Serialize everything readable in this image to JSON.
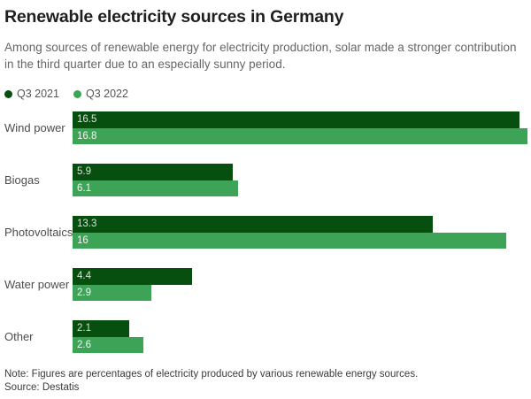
{
  "header": {
    "title": "Renewable electricity sources in Germany",
    "subtitle": "Among sources of renewable energy for electricity production, solar made a stronger contribution in the third quarter due to an especially sunny period."
  },
  "chart_data": {
    "type": "bar",
    "orientation": "horizontal",
    "title": "Renewable electricity sources in Germany",
    "categories": [
      "Wind power",
      "Biogas",
      "Photovoltaics",
      "Water power",
      "Other"
    ],
    "series": [
      {
        "name": "Q3 2021",
        "color": "#064f0e",
        "values": [
          16.5,
          5.9,
          13.3,
          4.4,
          2.1
        ],
        "labels": [
          "16.5",
          "5.9",
          "13.3",
          "4.4",
          "2.1"
        ]
      },
      {
        "name": "Q3 2022",
        "color": "#3ca357",
        "values": [
          16.8,
          6.1,
          16,
          2.9,
          2.6
        ],
        "labels": [
          "16.8",
          "6.1",
          "16",
          "2.9",
          "2.6"
        ]
      }
    ],
    "xlim": [
      0,
      16.8
    ],
    "xlabel": "",
    "ylabel": "",
    "grid": false,
    "legend_position": "top",
    "value_labels": "inside-left",
    "units": "percent of electricity production"
  },
  "footer": {
    "note": "Note: Figures are percentages of electricity produced by various renewable energy sources.",
    "source": "Source: Destatis"
  }
}
